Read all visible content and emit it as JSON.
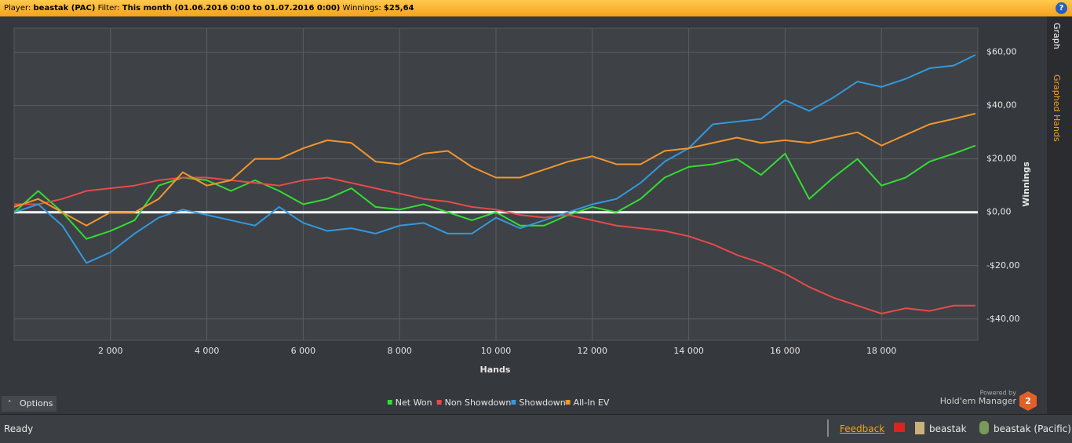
{
  "header": {
    "player_label": "Player:",
    "player": "beastak (PAC)",
    "filter_label": "Filter:",
    "filter": "This month (01.06.2016 0:00 to 01.07.2016 0:00)",
    "winnings_label": "Winnings:",
    "winnings": "$25,64",
    "help": "?"
  },
  "tabs": [
    "Graph",
    "Graphed Hands"
  ],
  "chart_data": {
    "type": "line",
    "x_label": "Hands",
    "y_label": "Winnings",
    "x": [
      0,
      500,
      1000,
      1500,
      2000,
      2500,
      3000,
      3500,
      4000,
      4500,
      5000,
      5500,
      6000,
      6500,
      7000,
      7500,
      8000,
      8500,
      9000,
      9500,
      10000,
      10500,
      11000,
      11500,
      12000,
      12500,
      13000,
      13500,
      14000,
      14500,
      15000,
      15500,
      16000,
      16500,
      17000,
      17500,
      18000,
      18500,
      19000,
      19500,
      19950
    ],
    "series": [
      {
        "name": "Net Won",
        "color": "#33dd33",
        "values": [
          0,
          8,
          0,
          -10,
          -7,
          -3,
          10,
          13,
          12,
          8,
          12,
          8,
          3,
          5,
          9,
          2,
          1,
          3,
          0,
          -3,
          0,
          -5,
          -5,
          -1,
          2,
          0,
          5,
          13,
          17,
          18,
          20,
          14,
          22,
          5,
          13,
          20,
          10,
          13,
          19,
          22,
          25
        ]
      },
      {
        "name": "Non Showdown",
        "color": "#e84a4a",
        "values": [
          3,
          3,
          5,
          8,
          9,
          10,
          12,
          13,
          13,
          12,
          11,
          10,
          12,
          13,
          11,
          9,
          7,
          5,
          4,
          2,
          1,
          -1,
          -2,
          -1,
          -3,
          -5,
          -6,
          -7,
          -9,
          -12,
          -16,
          -19,
          -23,
          -28,
          -32,
          -35,
          -38,
          -36,
          -37,
          -35,
          -35
        ]
      },
      {
        "name": "Showdown",
        "color": "#3399dd",
        "values": [
          0,
          3,
          -5,
          -19,
          -15,
          -8,
          -2,
          1,
          -1,
          -3,
          -5,
          2,
          -4,
          -7,
          -6,
          -8,
          -5,
          -4,
          -8,
          -8,
          -2,
          -6,
          -3,
          0,
          3,
          5,
          11,
          19,
          24,
          33,
          34,
          35,
          42,
          38,
          43,
          49,
          47,
          50,
          54,
          55,
          59
        ]
      },
      {
        "name": "All-In EV",
        "color": "#f0962e",
        "values": [
          2,
          5,
          0,
          -5,
          0,
          0,
          5,
          15,
          10,
          12,
          20,
          20,
          24,
          27,
          26,
          19,
          18,
          22,
          23,
          17,
          13,
          13,
          16,
          19,
          21,
          18,
          18,
          23,
          24,
          26,
          28,
          26,
          27,
          26,
          28,
          30,
          25,
          29,
          33,
          35,
          37
        ]
      }
    ],
    "xlim": [
      0,
      20000
    ],
    "ylim": [
      -48,
      69
    ],
    "xticks": [
      {
        "value": 2000,
        "label": "2 000"
      },
      {
        "value": 4000,
        "label": "4 000"
      },
      {
        "value": 6000,
        "label": "6 000"
      },
      {
        "value": 8000,
        "label": "8 000"
      },
      {
        "value": 10000,
        "label": "10 000"
      },
      {
        "value": 12000,
        "label": "12 000"
      },
      {
        "value": 14000,
        "label": "14 000"
      },
      {
        "value": 16000,
        "label": "16 000"
      },
      {
        "value": 18000,
        "label": "18 000"
      }
    ],
    "yticks": [
      {
        "value": 60,
        "label": "$60,00"
      },
      {
        "value": 40,
        "label": "$40,00"
      },
      {
        "value": 20,
        "label": "$20,00"
      },
      {
        "value": 0,
        "label": "$0,00"
      },
      {
        "value": -20,
        "label": "-$20,00"
      },
      {
        "value": -40,
        "label": "-$40,00"
      }
    ],
    "grid": true,
    "legend": "bottom"
  },
  "options_button": "Options",
  "branding": {
    "powered_by": "Powered by",
    "product": "Hold'em Manager",
    "version": "2"
  },
  "status_bar": {
    "status": "Ready",
    "feedback": "Feedback",
    "user": "beastak",
    "user_site": "beastak (Pacific)"
  }
}
